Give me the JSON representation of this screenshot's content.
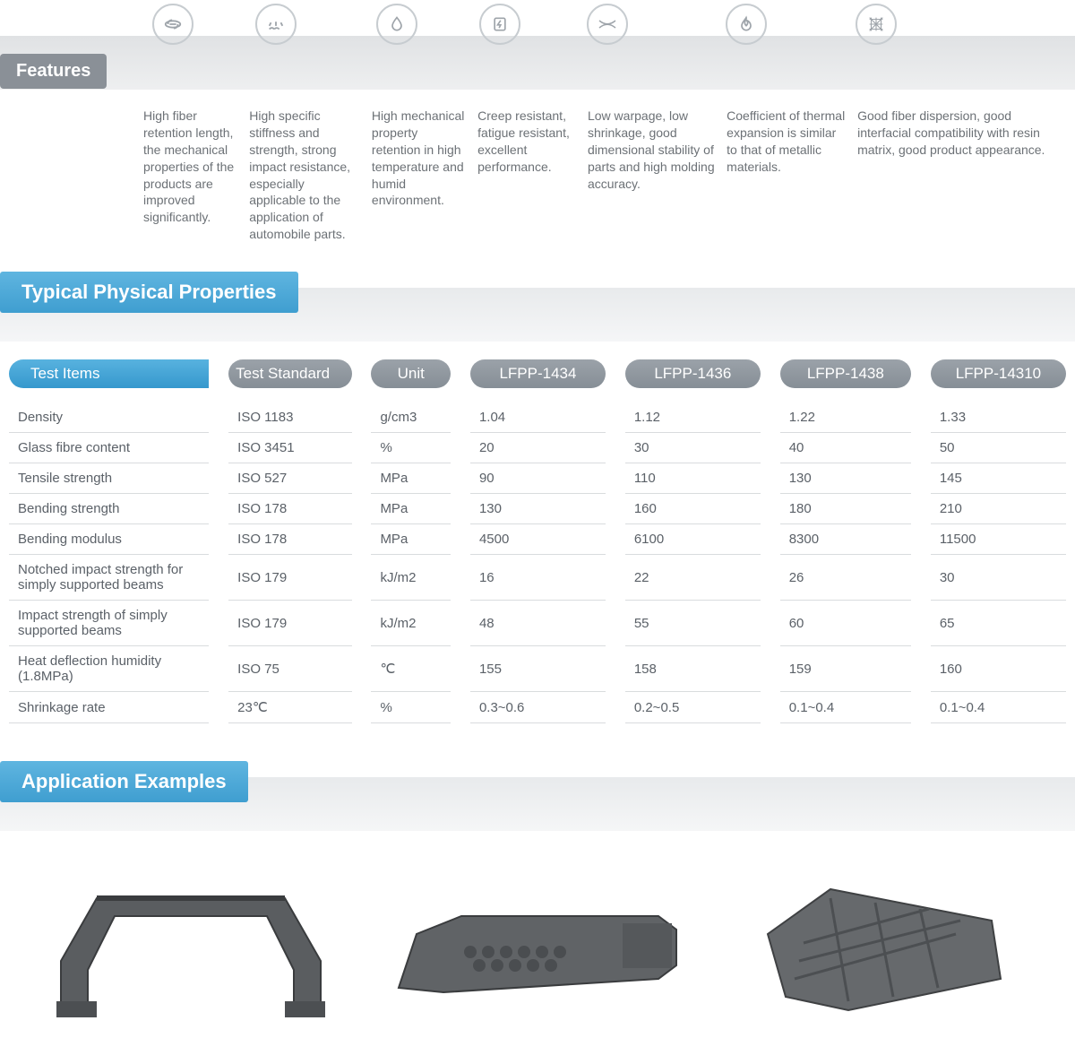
{
  "features_label": "Features",
  "features": [
    {
      "icon": "link-icon",
      "text": "High fiber retention length, the mechanical properties of the products are improved significantly."
    },
    {
      "icon": "impact-icon",
      "text": "High specific stiffness and strength, strong impact resistance, especially applicable to the application of automobile parts."
    },
    {
      "icon": "drop-icon",
      "text": "High mechanical property retention in high temperature and humid environment."
    },
    {
      "icon": "bolt-icon",
      "text": "Creep resistant, fatigue resistant, excellent performance."
    },
    {
      "icon": "warpage-icon",
      "text": "Low warpage, low shrinkage, good dimensional stability of parts and high molding accuracy."
    },
    {
      "icon": "flame-icon",
      "text": "Coefficient of thermal expansion is similar to that of metallic materials."
    },
    {
      "icon": "mesh-icon",
      "text": "Good fiber dispersion, good interfacial compatibility with resin matrix, good product appearance."
    }
  ],
  "typical_title": "Typical Physical Properties",
  "table": {
    "headers": [
      "Test Items",
      "Test Standard",
      "Unit",
      "LFPP-1434",
      "LFPP-1436",
      "LFPP-1438",
      "LFPP-14310"
    ],
    "rows": [
      [
        "Density",
        "ISO 1183",
        "g/cm3",
        "1.04",
        "1.12",
        "1.22",
        "1.33"
      ],
      [
        "Glass fibre content",
        "ISO 3451",
        "%",
        "20",
        "30",
        "40",
        "50"
      ],
      [
        "Tensile strength",
        "ISO 527",
        "MPa",
        "90",
        "110",
        "130",
        "145"
      ],
      [
        "Bending strength",
        "ISO 178",
        "MPa",
        "130",
        "160",
        "180",
        "210"
      ],
      [
        "Bending modulus",
        "ISO 178",
        "MPa",
        "4500",
        "6100",
        "8300",
        "11500"
      ],
      [
        "Notched impact strength for simply supported beams",
        "ISO 179",
        "kJ/m2",
        "16",
        "22",
        "26",
        "30"
      ],
      [
        "Impact strength of simply supported beams",
        "ISO 179",
        "kJ/m2",
        "48",
        "55",
        "60",
        "65"
      ],
      [
        "Heat deflection humidity (1.8MPa)",
        "ISO 75",
        "℃",
        "155",
        "158",
        "159",
        "160"
      ],
      [
        "Shrinkage rate",
        "23℃",
        "%",
        "0.3~0.6",
        "0.2~0.5",
        "0.1~0.4",
        "0.1~0.4"
      ]
    ],
    "col_widths": [
      "230",
      "140",
      "90",
      "155",
      "155",
      "150",
      "155"
    ]
  },
  "app_title": "Application Examples",
  "examples": [
    "front-end-carrier",
    "dashboard-bracket",
    "seat-pan"
  ],
  "colors": {
    "blue": "#3f9ed0",
    "gray_pill": "#8a9097",
    "text": "#6c7176",
    "icon_border": "#c7ccd0"
  }
}
